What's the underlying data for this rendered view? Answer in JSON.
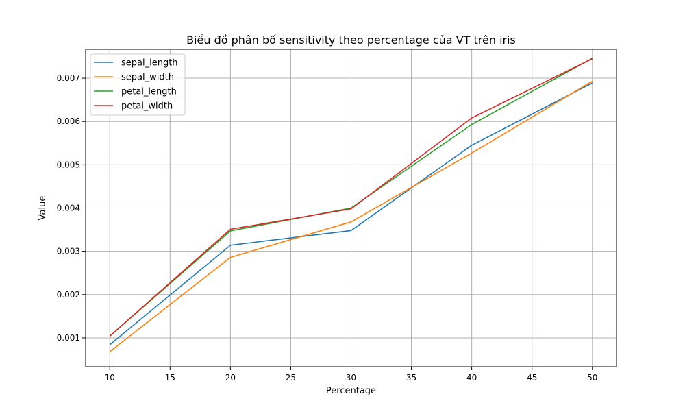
{
  "chart_data": {
    "type": "line",
    "title": "Biểu đồ phân bố sensitivity theo percentage của VT trên iris",
    "xlabel": "Percentage",
    "ylabel": "Value",
    "x": [
      10,
      20,
      30,
      40,
      50
    ],
    "xlim": [
      8,
      52
    ],
    "ylim": [
      0.000334,
      0.007666
    ],
    "xticks": [
      10,
      15,
      20,
      25,
      30,
      35,
      40,
      45,
      50
    ],
    "yticks": [
      0.001,
      0.002,
      0.003,
      0.004,
      0.005,
      0.006,
      0.007
    ],
    "ytick_labels": [
      "0.001",
      "0.002",
      "0.003",
      "0.004",
      "0.005",
      "0.006",
      "0.007"
    ],
    "grid": true,
    "legend_position": "top-left",
    "series": [
      {
        "name": "sepal_length",
        "color": "#1f77b4",
        "values": [
          0.00084,
          0.00314,
          0.00348,
          0.00545,
          0.00689
        ]
      },
      {
        "name": "sepal_width",
        "color": "#ff7f0e",
        "values": [
          0.00068,
          0.00286,
          0.00368,
          0.00527,
          0.00693
        ]
      },
      {
        "name": "petal_length",
        "color": "#2ca02c",
        "values": [
          0.00104,
          0.00347,
          0.004,
          0.00593,
          0.00746
        ]
      },
      {
        "name": "petal_width",
        "color": "#d62728",
        "values": [
          0.00104,
          0.00351,
          0.00398,
          0.00608,
          0.00745
        ]
      }
    ]
  }
}
